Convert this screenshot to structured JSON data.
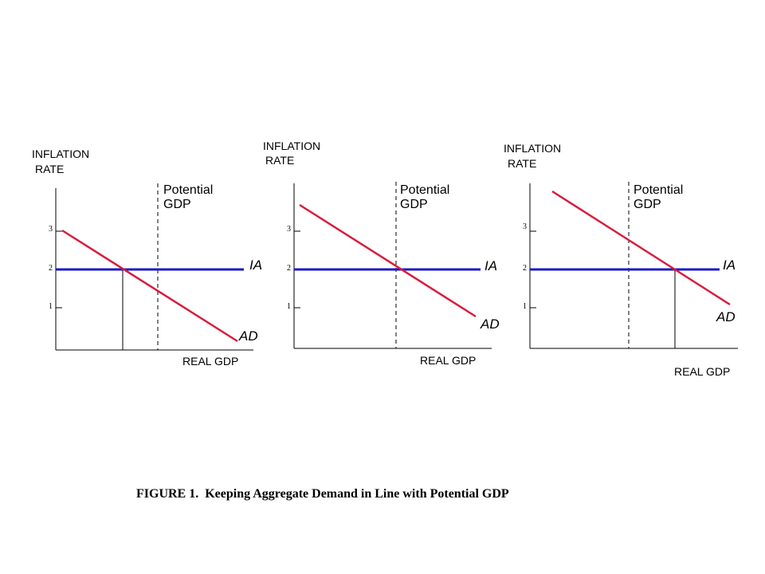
{
  "figure": {
    "caption": "FIGURE 1.  Keeping Aggregate Demand in Line with Potential GDP"
  },
  "colors": {
    "ia_line": "#1c1cc8",
    "ad_line": "#d81c3c",
    "axes": "#000000"
  },
  "panels": [
    {
      "y_title_line1": "INFLATION",
      "y_title_line2": "RATE",
      "x_title": "REAL GDP",
      "potential_line1": "Potential",
      "potential_line2": "GDP",
      "ia_label": "IA",
      "ad_label": "AD",
      "ticks": [
        "3",
        "2",
        "1"
      ]
    },
    {
      "y_title_line1": "INFLATION",
      "y_title_line2": "RATE",
      "x_title": "REAL GDP",
      "potential_line1": "Potential",
      "potential_line2": "GDP",
      "ia_label": "IA",
      "ad_label": "AD",
      "ticks": [
        "3",
        "2",
        "1"
      ]
    },
    {
      "y_title_line1": "INFLATION",
      "y_title_line2": "RATE",
      "x_title": "REAL GDP",
      "potential_line1": "Potential",
      "potential_line2": "GDP",
      "ia_label": "IA",
      "ad_label": "AD",
      "ticks": [
        "3",
        "2",
        "1"
      ]
    }
  ]
}
